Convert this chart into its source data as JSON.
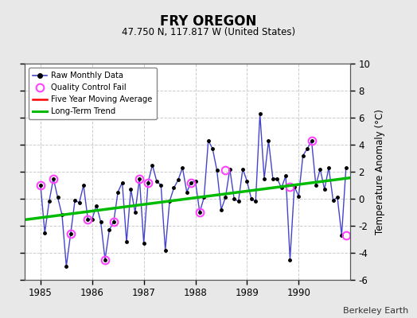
{
  "title": "FRY OREGON",
  "subtitle": "47.750 N, 117.817 W (United States)",
  "watermark": "Berkeley Earth",
  "ylabel": "Temperature Anomaly (°C)",
  "xlim": [
    1984.7,
    1991.0
  ],
  "ylim": [
    -6,
    10
  ],
  "yticks": [
    -6,
    -4,
    -2,
    0,
    2,
    4,
    6,
    8,
    10
  ],
  "bg_color": "#e8e8e8",
  "plot_bg_color": "#ffffff",
  "grid_color": "#cccccc",
  "raw_color": "#4444cc",
  "raw_marker_color": "#000000",
  "qc_color": "#ff44ff",
  "trend_color": "#00bb00",
  "moving_avg_color": "#ff0000",
  "raw_x": [
    1985.0,
    1985.083,
    1985.167,
    1985.25,
    1985.333,
    1985.417,
    1985.5,
    1985.583,
    1985.667,
    1985.75,
    1985.833,
    1985.917,
    1986.0,
    1986.083,
    1986.167,
    1986.25,
    1986.333,
    1986.417,
    1986.5,
    1986.583,
    1986.667,
    1986.75,
    1986.833,
    1986.917,
    1987.0,
    1987.083,
    1987.167,
    1987.25,
    1987.333,
    1987.417,
    1987.5,
    1987.583,
    1987.667,
    1987.75,
    1987.833,
    1987.917,
    1988.0,
    1988.083,
    1988.167,
    1988.25,
    1988.333,
    1988.417,
    1988.5,
    1988.583,
    1988.667,
    1988.75,
    1988.833,
    1988.917,
    1989.0,
    1989.083,
    1989.167,
    1989.25,
    1989.333,
    1989.417,
    1989.5,
    1989.583,
    1989.667,
    1989.75,
    1989.833,
    1989.917,
    1990.0,
    1990.083,
    1990.167,
    1990.25,
    1990.333,
    1990.417,
    1990.5,
    1990.583,
    1990.667,
    1990.75,
    1990.833,
    1990.917
  ],
  "raw_y": [
    1.0,
    -2.5,
    -0.2,
    1.5,
    0.1,
    -1.2,
    -5.0,
    -2.6,
    -0.1,
    -0.3,
    1.0,
    -1.5,
    -1.5,
    -0.5,
    -1.7,
    -4.5,
    -2.3,
    -1.7,
    0.5,
    1.2,
    -3.2,
    0.7,
    -1.0,
    1.5,
    -3.3,
    1.2,
    2.5,
    1.3,
    1.0,
    -3.8,
    -0.2,
    0.8,
    1.4,
    2.3,
    0.5,
    1.2,
    1.3,
    -1.0,
    0.1,
    4.3,
    3.7,
    2.1,
    -0.8,
    0.1,
    2.2,
    0.0,
    -0.2,
    2.2,
    1.3,
    0.0,
    -0.2,
    6.3,
    1.5,
    4.3,
    1.5,
    1.5,
    0.8,
    1.7,
    -4.5,
    0.9,
    0.2,
    3.2,
    3.7,
    4.3,
    1.0,
    2.2,
    0.7,
    2.3,
    -0.1,
    0.1,
    -2.7,
    2.3
  ],
  "qc_fail_x": [
    1985.0,
    1985.25,
    1985.583,
    1985.917,
    1986.25,
    1986.417,
    1986.917,
    1987.083,
    1987.917,
    1988.083,
    1988.583,
    1989.833,
    1990.25,
    1990.917
  ],
  "qc_fail_y": [
    1.0,
    1.5,
    -2.6,
    -1.5,
    -4.5,
    -1.7,
    1.5,
    1.2,
    1.2,
    -1.0,
    2.1,
    0.9,
    4.3,
    -2.7
  ],
  "trend_x": [
    1984.7,
    1991.0
  ],
  "trend_y": [
    -1.55,
    1.55
  ],
  "xticks": [
    1985,
    1986,
    1987,
    1988,
    1989,
    1990
  ],
  "xtick_labels": [
    "1985",
    "1986",
    "1987",
    "1988",
    "1989",
    "1990"
  ]
}
